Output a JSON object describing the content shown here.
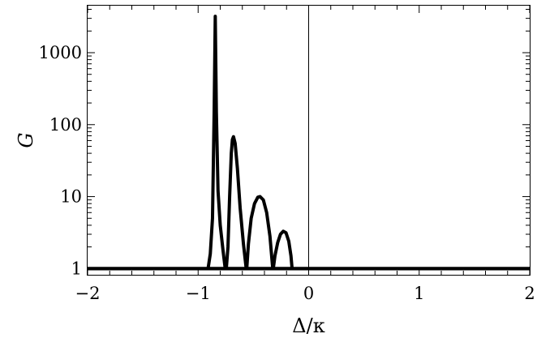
{
  "chart_data": {
    "type": "line",
    "xlabel": "Δ/κ",
    "ylabel": "G",
    "xlim": [
      -2,
      2
    ],
    "ylim": [
      0.82,
      4500
    ],
    "y_scale": "log",
    "grid": false,
    "x_ticks": [
      -2,
      -1,
      0,
      1,
      2
    ],
    "x_tick_labels": [
      "−2",
      "−1",
      "0",
      "1",
      "2"
    ],
    "y_ticks": [
      1,
      10,
      100,
      1000
    ],
    "y_tick_labels": [
      "1",
      "10",
      "100",
      "1000"
    ],
    "series_color": "#000000",
    "baseline": {
      "x": [
        -2,
        2
      ],
      "y": [
        1,
        1
      ]
    },
    "series": [
      {
        "x": [
          -0.91,
          -0.89,
          -0.87,
          -0.855,
          -0.845,
          -0.835,
          -0.82,
          -0.8,
          -0.775,
          -0.755
        ],
        "y": [
          1,
          1.6,
          5,
          150,
          3200,
          150,
          12,
          4,
          1.8,
          1
        ]
      },
      {
        "x": [
          -0.745,
          -0.73,
          -0.715,
          -0.7,
          -0.69,
          -0.68,
          -0.665,
          -0.645,
          -0.62,
          -0.59,
          -0.565
        ],
        "y": [
          1,
          2,
          10,
          40,
          62,
          68,
          55,
          25,
          7,
          2.2,
          1
        ]
      },
      {
        "x": [
          -0.56,
          -0.545,
          -0.52,
          -0.49,
          -0.46,
          -0.44,
          -0.41,
          -0.38,
          -0.35,
          -0.325
        ],
        "y": [
          1,
          2.2,
          5,
          8,
          9.8,
          10,
          9,
          6,
          2.8,
          1
        ]
      },
      {
        "x": [
          -0.32,
          -0.305,
          -0.28,
          -0.255,
          -0.23,
          -0.205,
          -0.18,
          -0.16,
          -0.15
        ],
        "y": [
          1,
          1.5,
          2.3,
          3.0,
          3.3,
          3.15,
          2.4,
          1.5,
          1
        ]
      }
    ]
  }
}
